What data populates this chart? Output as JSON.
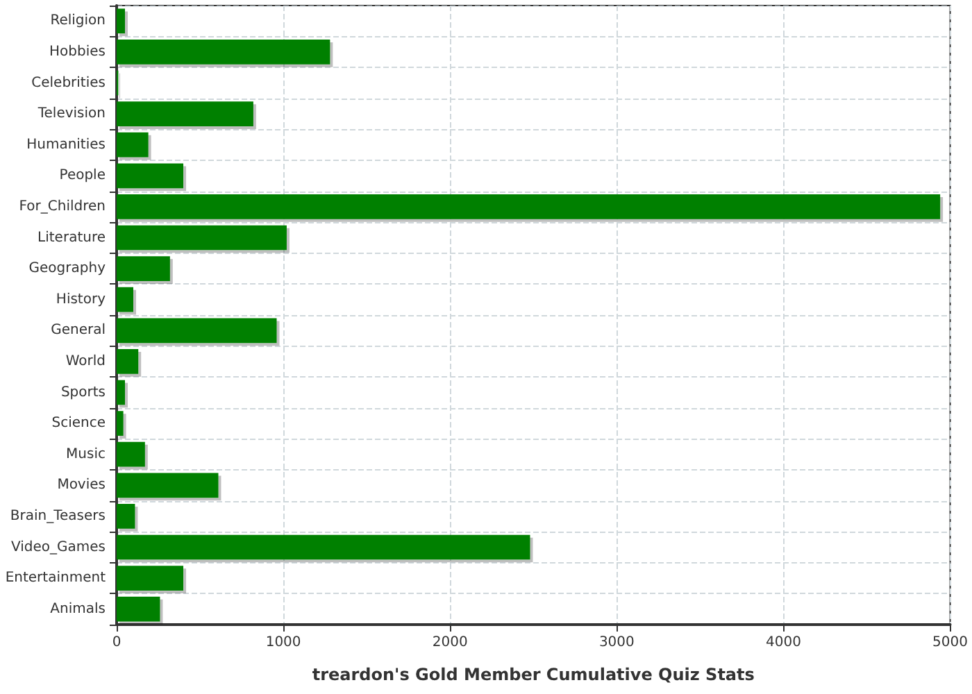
{
  "chart_data": {
    "type": "bar",
    "orientation": "horizontal",
    "xlabel": "treardon's Gold Member Cumulative Quiz Stats",
    "categories": [
      "Religion",
      "Hobbies",
      "Celebrities",
      "Television",
      "Humanities",
      "People",
      "For_Children",
      "Literature",
      "Geography",
      "History",
      "General",
      "World",
      "Sports",
      "Science",
      "Music",
      "Movies",
      "Brain_Teasers",
      "Video_Games",
      "Entertainment",
      "Animals"
    ],
    "values": [
      50,
      1280,
      10,
      820,
      190,
      400,
      4940,
      1020,
      320,
      100,
      960,
      130,
      50,
      40,
      170,
      610,
      110,
      2480,
      400,
      260
    ],
    "color": "#008000",
    "xlim": [
      0,
      5000
    ],
    "xticks": [
      0,
      1000,
      2000,
      3000,
      4000,
      5000
    ],
    "grid": true
  }
}
